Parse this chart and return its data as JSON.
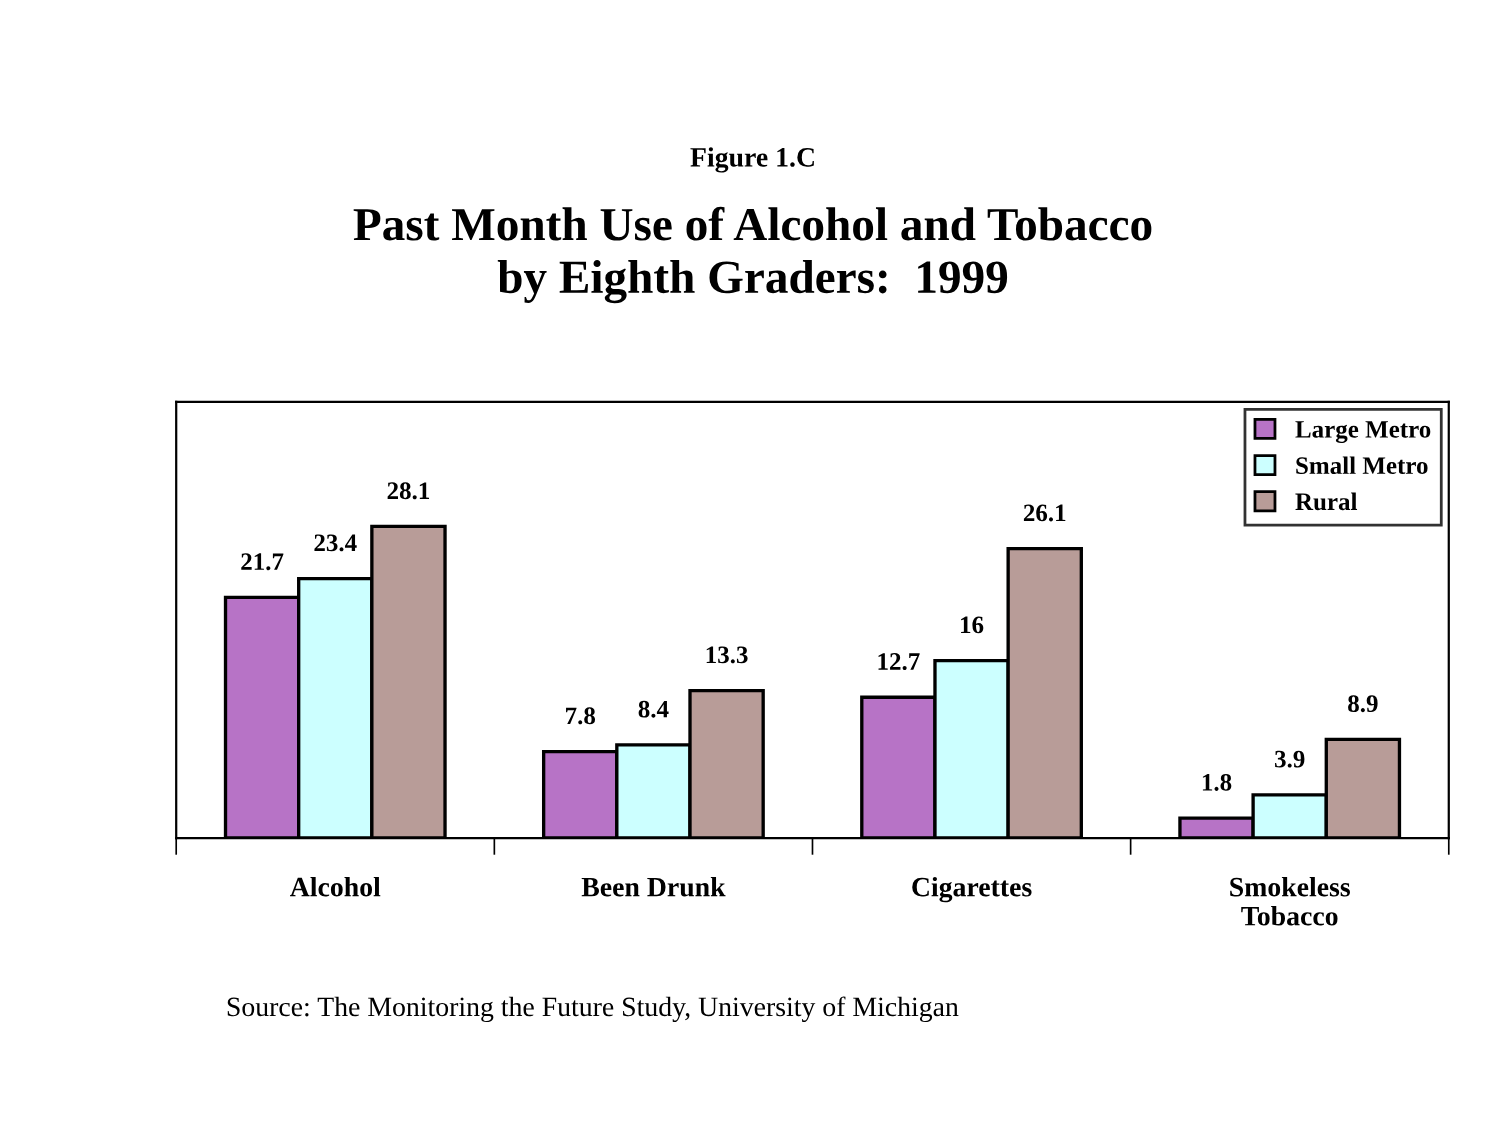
{
  "chart_data": {
    "type": "bar",
    "subtitle": "Figure 1.C",
    "title": "Past Month Use of Alcohol and Tobacco\nby Eighth Graders:  1999",
    "categories": [
      "Alcohol",
      "Been Drunk",
      "Cigarettes",
      "Smokeless\nTobacco"
    ],
    "series": [
      {
        "name": "Large Metro",
        "color": "#b773c6",
        "values": [
          21.7,
          7.8,
          12.7,
          1.8
        ]
      },
      {
        "name": "Small Metro",
        "color": "#ccffff",
        "values": [
          23.4,
          8.4,
          16,
          3.9
        ]
      },
      {
        "name": "Rural",
        "color": "#b89c98",
        "values": [
          28.1,
          13.3,
          26.1,
          8.9
        ]
      }
    ],
    "data_labels": true,
    "legend": "top right",
    "grid": false,
    "annotations": [
      "Source: The Monitoring the Future Study, University of Michigan"
    ]
  }
}
